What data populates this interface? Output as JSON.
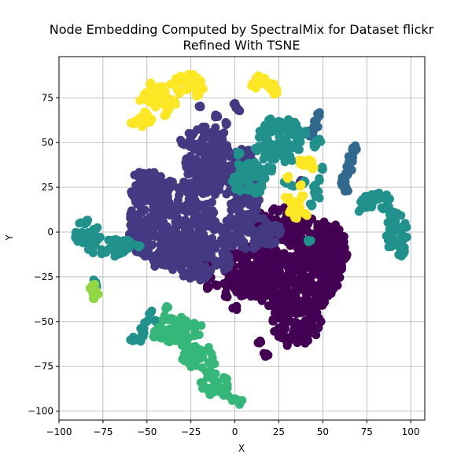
{
  "chart_data": {
    "type": "scatter",
    "title_lines": [
      "Node Embedding Computed by SpectralMix for Dataset flickr",
      "Refined With TSNE"
    ],
    "xlabel": "X",
    "ylabel": "Y",
    "xlim": [
      -100,
      108
    ],
    "ylim": [
      -105,
      98
    ],
    "xticks": [
      -100,
      -75,
      -50,
      -25,
      0,
      25,
      50,
      75,
      100
    ],
    "yticks": [
      -100,
      -75,
      -50,
      -25,
      0,
      25,
      50,
      75
    ],
    "grid": true,
    "legend": "none",
    "colormap": "viridis",
    "marker": "circle",
    "series": [
      {
        "color": "#440154",
        "clusters": [
          {
            "cx": 33,
            "cy": -18,
            "rx": 28,
            "ry": 28
          },
          {
            "cx": 10,
            "cy": -22,
            "rx": 18,
            "ry": 15
          },
          {
            "cx": 35,
            "cy": -50,
            "rx": 14,
            "ry": 13
          },
          {
            "cx": 52,
            "cy": -10,
            "rx": 12,
            "ry": 16
          },
          {
            "cx": 25,
            "cy": 5,
            "rx": 18,
            "ry": 9
          }
        ],
        "points": [
          [
            -15,
            -25
          ],
          [
            -10,
            -30
          ],
          [
            -5,
            -35
          ],
          [
            -13,
            -18
          ],
          [
            -5,
            -30
          ],
          [
            0,
            -42
          ],
          [
            18,
            -68
          ],
          [
            14,
            -62
          ],
          [
            -18,
            -15
          ],
          [
            -21,
            -9
          ],
          [
            -18,
            -4
          ],
          [
            -15,
            -31
          ],
          [
            30,
            -62
          ],
          [
            50,
            -40
          ],
          [
            58,
            -20
          ]
        ]
      },
      {
        "color": "#443983",
        "clusters": [
          {
            "cx": -35,
            "cy": 5,
            "rx": 25,
            "ry": 25
          },
          {
            "cx": -15,
            "cy": 40,
            "rx": 14,
            "ry": 20
          },
          {
            "cx": -20,
            "cy": -15,
            "rx": 18,
            "ry": 12
          },
          {
            "cx": 5,
            "cy": 25,
            "rx": 10,
            "ry": 22
          },
          {
            "cx": 8,
            "cy": 0,
            "rx": 18,
            "ry": 10
          },
          {
            "cx": -50,
            "cy": 25,
            "rx": 10,
            "ry": 10
          },
          {
            "cx": -55,
            "cy": 0,
            "rx": 6,
            "ry": 12
          }
        ],
        "points": [
          [
            -10,
            65
          ],
          [
            -5,
            60
          ],
          [
            0,
            72
          ],
          [
            2,
            68
          ],
          [
            -30,
            50
          ],
          [
            -20,
            70
          ],
          [
            -25,
            55
          ],
          [
            25,
            2
          ],
          [
            37,
            28
          ],
          [
            -45,
            -18
          ],
          [
            -55,
            -10
          ]
        ]
      },
      {
        "color": "#31688e",
        "clusters": [],
        "points": [
          [
            67,
            47
          ],
          [
            66,
            42
          ],
          [
            65,
            38
          ],
          [
            64,
            32
          ],
          [
            62,
            28
          ],
          [
            63,
            24
          ],
          [
            61,
            26
          ],
          [
            62,
            30
          ],
          [
            65,
            35
          ],
          [
            66,
            40
          ],
          [
            68,
            45
          ],
          [
            47,
            66
          ],
          [
            46,
            62
          ],
          [
            45,
            58
          ],
          [
            44,
            55
          ],
          [
            46,
            60
          ],
          [
            43,
            56
          ]
        ]
      },
      {
        "color": "#21918c",
        "clusters": [
          {
            "cx": 25,
            "cy": 50,
            "rx": 14,
            "ry": 12
          },
          {
            "cx": 8,
            "cy": 30,
            "rx": 10,
            "ry": 10
          },
          {
            "cx": -85,
            "cy": 0,
            "rx": 8,
            "ry": 7
          },
          {
            "cx": -72,
            "cy": -8,
            "rx": 12,
            "ry": 6
          },
          {
            "cx": 92,
            "cy": 0,
            "rx": 6,
            "ry": 14
          },
          {
            "cx": 80,
            "cy": 17,
            "rx": 9,
            "ry": 5
          }
        ],
        "points": [
          [
            35,
            60
          ],
          [
            40,
            55
          ],
          [
            30,
            62
          ],
          [
            20,
            63
          ],
          [
            15,
            55
          ],
          [
            3,
            44
          ],
          [
            20,
            35
          ],
          [
            28,
            28
          ],
          [
            -62,
            -10
          ],
          [
            -60,
            -5
          ],
          [
            -65,
            -12
          ],
          [
            -55,
            -8
          ],
          [
            -80,
            -30
          ],
          [
            -79,
            -28
          ],
          [
            -55,
            -60
          ],
          [
            -53,
            -55
          ],
          [
            -50,
            -50
          ],
          [
            -48,
            -45
          ],
          [
            -45,
            -50
          ],
          [
            -52,
            -58
          ],
          [
            -58,
            -60
          ],
          [
            47,
            20
          ],
          [
            45,
            25
          ],
          [
            48,
            30
          ],
          [
            50,
            35
          ],
          [
            46,
            22
          ],
          [
            44,
            15
          ],
          [
            95,
            -8
          ],
          [
            96,
            -12
          ],
          [
            93,
            -5
          ],
          [
            90,
            5
          ],
          [
            88,
            10
          ],
          [
            85,
            20
          ],
          [
            75,
            14
          ],
          [
            72,
            13
          ],
          [
            48,
            52
          ],
          [
            45,
            48
          ],
          [
            40,
            28
          ],
          [
            32,
            26
          ],
          [
            42,
            -5
          ]
        ]
      },
      {
        "color": "#35b779",
        "clusters": [
          {
            "cx": -32,
            "cy": -55,
            "rx": 14,
            "ry": 8
          },
          {
            "cx": -20,
            "cy": -70,
            "rx": 10,
            "ry": 7
          },
          {
            "cx": -12,
            "cy": -85,
            "rx": 9,
            "ry": 6
          }
        ],
        "points": [
          [
            -5,
            -90
          ],
          [
            0,
            -93
          ],
          [
            3,
            -95
          ],
          [
            -40,
            -48
          ],
          [
            -45,
            -58
          ],
          [
            -38,
            -42
          ],
          [
            -30,
            -62
          ],
          [
            -15,
            -78
          ],
          [
            -8,
            -88
          ],
          [
            -25,
            -65
          ]
        ]
      },
      {
        "color": "#90d743",
        "clusters": [],
        "points": [
          [
            -80,
            -33
          ],
          [
            -80,
            -36
          ],
          [
            -82,
            -31
          ],
          [
            -79,
            -35
          ],
          [
            -81,
            -30
          ],
          [
            -80,
            -34
          ]
        ]
      },
      {
        "color": "#fde725",
        "clusters": [
          {
            "cx": -45,
            "cy": 75,
            "rx": 10,
            "ry": 6
          },
          {
            "cx": -28,
            "cy": 83,
            "rx": 9,
            "ry": 5
          }
        ],
        "points": [
          [
            -55,
            63
          ],
          [
            -58,
            61
          ],
          [
            -52,
            60
          ],
          [
            -50,
            66
          ],
          [
            -38,
            68
          ],
          [
            -35,
            72
          ],
          [
            -32,
            78
          ],
          [
            -25,
            88
          ],
          [
            -20,
            85
          ],
          [
            -18,
            80
          ],
          [
            -22,
            76
          ],
          [
            -42,
            80
          ],
          [
            -48,
            82
          ],
          [
            -45,
            70
          ],
          [
            -40,
            65
          ],
          [
            -48,
            62
          ],
          [
            10,
            83
          ],
          [
            13,
            86
          ],
          [
            15,
            84
          ],
          [
            18,
            82
          ],
          [
            20,
            80
          ],
          [
            23,
            79
          ],
          [
            21,
            82
          ],
          [
            12,
            81
          ],
          [
            17,
            85
          ],
          [
            22,
            78
          ],
          [
            35,
            17
          ],
          [
            32,
            12
          ],
          [
            30,
            18
          ],
          [
            36,
            13
          ],
          [
            33,
            15
          ],
          [
            38,
            20
          ],
          [
            40,
            10
          ],
          [
            34,
            8
          ],
          [
            40,
            38
          ],
          [
            43,
            40
          ],
          [
            45,
            36
          ],
          [
            38,
            39
          ],
          [
            37,
            26
          ],
          [
            30,
            30
          ]
        ]
      }
    ]
  }
}
